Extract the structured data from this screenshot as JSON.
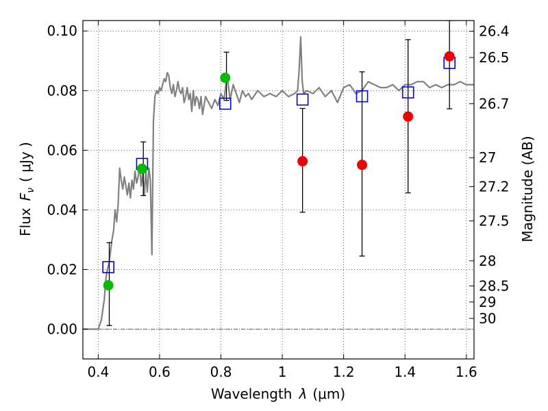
{
  "chart_data": {
    "type": "scatter",
    "title": "",
    "xlabel": "Wavelength",
    "xlabel_symbol": "λ",
    "xlabel_unit": "(μm)",
    "ylabel": "Flux",
    "ylabel_symbol": "F",
    "ylabel_subscript": "ν",
    "ylabel_unit": "( μJy )",
    "y2label": "Magnitude (AB)",
    "xlim": [
      0.35,
      1.625
    ],
    "ylim": [
      -0.01,
      0.1035
    ],
    "x_ticks": [
      {
        "value": 0.4,
        "label": "0.4"
      },
      {
        "value": 0.6,
        "label": "0.6"
      },
      {
        "value": 0.8,
        "label": "0.8"
      },
      {
        "value": 1.0,
        "label": "1"
      },
      {
        "value": 1.2,
        "label": "1.2"
      },
      {
        "value": 1.4,
        "label": "1.4"
      },
      {
        "value": 1.6,
        "label": "1.6"
      }
    ],
    "y_ticks": [
      {
        "value": 0.0,
        "label": "0.00"
      },
      {
        "value": 0.02,
        "label": "0.02"
      },
      {
        "value": 0.04,
        "label": "0.04"
      },
      {
        "value": 0.06,
        "label": "0.06"
      },
      {
        "value": 0.08,
        "label": "0.08"
      },
      {
        "value": 0.1,
        "label": "0.10"
      }
    ],
    "y2_ticks": [
      {
        "flux": 0.0999,
        "label": "26.4"
      },
      {
        "flux": 0.0911,
        "label": "26.5"
      },
      {
        "flux": 0.0756,
        "label": "26.7"
      },
      {
        "flux": 0.0575,
        "label": "27"
      },
      {
        "flux": 0.0478,
        "label": "27.2"
      },
      {
        "flux": 0.0363,
        "label": "27.5"
      },
      {
        "flux": 0.0229,
        "label": "28"
      },
      {
        "flux": 0.0145,
        "label": "28.5"
      },
      {
        "flux": 0.0091,
        "label": "29"
      },
      {
        "flux": 0.0036,
        "label": "30"
      }
    ],
    "grid": true,
    "colors": {
      "spectrum": "#808080",
      "green": "#00bb00",
      "red": "#ee0000",
      "blue_square": "#0000dd",
      "errorbar": "#000000"
    },
    "series": [
      {
        "name": "model spectrum",
        "kind": "line",
        "x": [
          0.35,
          0.4,
          0.41,
          0.42,
          0.425,
          0.43,
          0.435,
          0.44,
          0.445,
          0.45,
          0.455,
          0.46,
          0.465,
          0.47,
          0.475,
          0.48,
          0.485,
          0.49,
          0.495,
          0.5,
          0.505,
          0.51,
          0.515,
          0.52,
          0.525,
          0.53,
          0.535,
          0.54,
          0.545,
          0.55,
          0.555,
          0.56,
          0.565,
          0.57,
          0.575,
          0.58,
          0.585,
          0.59,
          0.595,
          0.6,
          0.605,
          0.61,
          0.615,
          0.62,
          0.625,
          0.63,
          0.635,
          0.64,
          0.645,
          0.65,
          0.655,
          0.66,
          0.665,
          0.67,
          0.675,
          0.68,
          0.685,
          0.69,
          0.695,
          0.7,
          0.705,
          0.71,
          0.715,
          0.72,
          0.725,
          0.73,
          0.735,
          0.74,
          0.745,
          0.75,
          0.76,
          0.77,
          0.78,
          0.79,
          0.8,
          0.81,
          0.82,
          0.83,
          0.84,
          0.85,
          0.86,
          0.87,
          0.88,
          0.89,
          0.9,
          0.92,
          0.94,
          0.96,
          0.98,
          1.0,
          1.02,
          1.04,
          1.05,
          1.055,
          1.06,
          1.065,
          1.07,
          1.08,
          1.1,
          1.12,
          1.14,
          1.16,
          1.18,
          1.2,
          1.22,
          1.24,
          1.26,
          1.28,
          1.3,
          1.32,
          1.34,
          1.36,
          1.38,
          1.4,
          1.42,
          1.44,
          1.46,
          1.48,
          1.5,
          1.52,
          1.54,
          1.56,
          1.58,
          1.6,
          1.625
        ],
        "y": [
          0.0,
          0.0,
          0.003,
          0.01,
          0.017,
          0.02,
          0.022,
          0.026,
          0.03,
          0.033,
          0.04,
          0.036,
          0.042,
          0.054,
          0.05,
          0.047,
          0.051,
          0.048,
          0.045,
          0.049,
          0.044,
          0.05,
          0.047,
          0.053,
          0.049,
          0.051,
          0.055,
          0.048,
          0.052,
          0.045,
          0.053,
          0.046,
          0.054,
          0.05,
          0.025,
          0.07,
          0.078,
          0.08,
          0.079,
          0.081,
          0.08,
          0.082,
          0.084,
          0.083,
          0.086,
          0.085,
          0.081,
          0.079,
          0.082,
          0.078,
          0.08,
          0.083,
          0.08,
          0.079,
          0.081,
          0.076,
          0.078,
          0.081,
          0.077,
          0.079,
          0.073,
          0.08,
          0.075,
          0.078,
          0.077,
          0.074,
          0.078,
          0.072,
          0.075,
          0.078,
          0.076,
          0.074,
          0.077,
          0.075,
          0.079,
          0.077,
          0.085,
          0.077,
          0.082,
          0.079,
          0.076,
          0.08,
          0.078,
          0.079,
          0.077,
          0.08,
          0.078,
          0.079,
          0.078,
          0.08,
          0.078,
          0.079,
          0.08,
          0.087,
          0.098,
          0.083,
          0.079,
          0.08,
          0.079,
          0.081,
          0.078,
          0.08,
          0.076,
          0.081,
          0.082,
          0.079,
          0.08,
          0.083,
          0.082,
          0.081,
          0.081,
          0.082,
          0.08,
          0.082,
          0.082,
          0.083,
          0.083,
          0.081,
          0.082,
          0.081,
          0.082,
          0.082,
          0.083,
          0.082,
          0.082
        ]
      },
      {
        "name": "green photometry",
        "kind": "points",
        "color": "green",
        "x": [
          0.433,
          0.543,
          0.814
        ],
        "y": [
          0.0147,
          0.0538,
          0.0843
        ]
      },
      {
        "name": "red photometry",
        "kind": "points",
        "color": "red",
        "x": [
          1.066,
          1.26,
          1.41,
          1.545
        ],
        "y": [
          0.0563,
          0.0551,
          0.0713,
          0.0915
        ]
      },
      {
        "name": "model bands",
        "kind": "squares",
        "color": "blue_square",
        "x": [
          0.433,
          0.543,
          0.814,
          1.066,
          1.26,
          1.41,
          1.545
        ],
        "y": [
          0.0208,
          0.0554,
          0.0756,
          0.077,
          0.0781,
          0.0794,
          0.0893
        ]
      },
      {
        "name": "error bars",
        "kind": "errorbars",
        "x": [
          0.436,
          0.547,
          0.818,
          1.066,
          1.26,
          1.41,
          1.545
        ],
        "ylow": [
          0.0012,
          0.0448,
          0.0767,
          0.0392,
          0.0245,
          0.0457,
          0.0739
        ],
        "yhigh": [
          0.029,
          0.0628,
          0.0929,
          0.074,
          0.0863,
          0.0971,
          0.1035
        ]
      }
    ]
  }
}
